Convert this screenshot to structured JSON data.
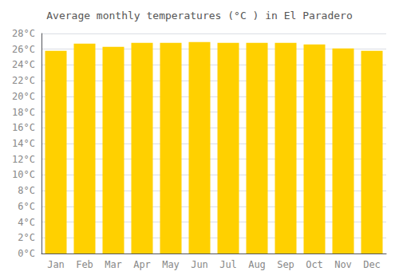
{
  "chart_data": {
    "type": "bar",
    "title": "Average monthly temperatures (°C ) in El Paradero",
    "categories": [
      "Jan",
      "Feb",
      "Mar",
      "Apr",
      "May",
      "Jun",
      "Jul",
      "Aug",
      "Sep",
      "Oct",
      "Nov",
      "Dec"
    ],
    "values": [
      25.8,
      26.7,
      26.3,
      26.8,
      26.8,
      26.9,
      26.8,
      26.8,
      26.8,
      26.6,
      26.1,
      25.8
    ],
    "color": "#FFD000",
    "ylim": [
      0,
      28
    ],
    "yticks": [
      {
        "value": 0,
        "label": "0°C"
      },
      {
        "value": 2,
        "label": "2°C"
      },
      {
        "value": 4,
        "label": "4°C"
      },
      {
        "value": 6,
        "label": "6°C"
      },
      {
        "value": 8,
        "label": "8°C"
      },
      {
        "value": 10,
        "label": "10°C"
      },
      {
        "value": 12,
        "label": "12°C"
      },
      {
        "value": 14,
        "label": "14°C"
      },
      {
        "value": 16,
        "label": "16°C"
      },
      {
        "value": 18,
        "label": "18°C"
      },
      {
        "value": 20,
        "label": "20°C"
      },
      {
        "value": 22,
        "label": "22°C"
      },
      {
        "value": 24,
        "label": "24°C"
      },
      {
        "value": 26,
        "label": "26°C"
      },
      {
        "value": 28,
        "label": "28°C"
      }
    ],
    "grid": true
  }
}
